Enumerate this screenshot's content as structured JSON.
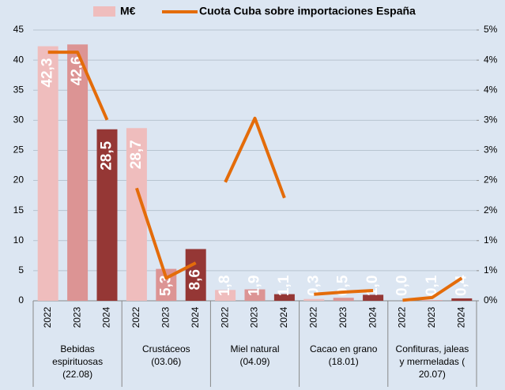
{
  "chart_data": {
    "type": "bar",
    "categories": [
      "2022",
      "2023",
      "2024",
      "2022",
      "2023",
      "2024",
      "2022",
      "2023",
      "2024",
      "2022",
      "2023",
      "2024",
      "2022",
      "2023",
      "2024"
    ],
    "groups": [
      [
        "Bebidas",
        "espirituosas",
        "(22.08)"
      ],
      [
        "Crustáceos",
        "(03.06)"
      ],
      [
        "Miel natural",
        "(04.09)"
      ],
      [
        "Cacao en grano",
        "(18.01)"
      ],
      [
        "Confituras, jaleas",
        "y mermeladas (",
        "20.07)"
      ]
    ],
    "series": [
      {
        "name": "M€",
        "type": "bar",
        "colors": [
          "#efbdbd",
          "#dc9494",
          "#953735"
        ],
        "values": [
          42.3,
          42.6,
          28.5,
          28.7,
          5.3,
          8.6,
          1.8,
          1.9,
          1.1,
          0.3,
          0.5,
          1.0,
          0.0,
          0.1,
          0.4
        ],
        "value_labels": [
          "42,3",
          "42,6",
          "28,5",
          "28,7",
          "5,3",
          "8,6",
          "1,8",
          "1,9",
          "1,1",
          "0,3",
          "0,5",
          "1,0",
          "0,0",
          "0,1",
          "0,4"
        ]
      },
      {
        "name": "Cuota Cuba sobre importaciones España",
        "type": "line",
        "axis": "y2",
        "color": "#e46c0a",
        "values": [
          4.59,
          4.59,
          3.34,
          2.08,
          0.42,
          0.7,
          2.19,
          3.37,
          1.9,
          0.12,
          0.16,
          0.19,
          0.01,
          0.06,
          0.42
        ]
      }
    ],
    "ylim": [
      0,
      45
    ],
    "yticks": [
      0,
      5,
      10,
      15,
      20,
      25,
      30,
      35,
      40,
      45
    ],
    "y2lim": [
      0,
      5
    ],
    "y2ticks": [
      {
        "value": 0,
        "label": "0%"
      },
      {
        "value": 0.556,
        "label": "1%"
      },
      {
        "value": 1.111,
        "label": "1%"
      },
      {
        "value": 1.667,
        "label": "2%"
      },
      {
        "value": 2.222,
        "label": "2%"
      },
      {
        "value": 2.778,
        "label": "3%"
      },
      {
        "value": 3.333,
        "label": "3%"
      },
      {
        "value": 3.889,
        "label": "4%"
      },
      {
        "value": 4.444,
        "label": "4%"
      },
      {
        "value": 5,
        "label": "5%"
      }
    ],
    "grid": true,
    "background": "#dce6f2"
  }
}
